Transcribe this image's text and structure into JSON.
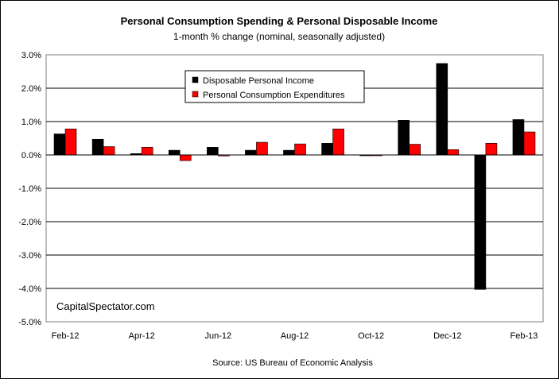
{
  "chart_data": {
    "type": "bar",
    "title": "Personal Consumption Spending & Personal Disposable Income",
    "subtitle": "1-month % change (nominal, seasonally adjusted)",
    "categories": [
      "Feb-12",
      "Mar-12",
      "Apr-12",
      "May-12",
      "Jun-12",
      "Jul-12",
      "Aug-12",
      "Sep-12",
      "Oct-12",
      "Nov-12",
      "Dec-12",
      "Jan-13",
      "Feb-13"
    ],
    "x_tick_labels": [
      "Feb-12",
      "",
      "Apr-12",
      "",
      "Jun-12",
      "",
      "Aug-12",
      "",
      "Oct-12",
      "",
      "Dec-12",
      "",
      "Feb-13"
    ],
    "series": [
      {
        "name": "Disposable Personal Income",
        "color": "#000000",
        "values": [
          0.63,
          0.47,
          0.04,
          0.14,
          0.23,
          0.14,
          0.14,
          0.35,
          -0.02,
          1.04,
          2.74,
          -4.03,
          1.06
        ]
      },
      {
        "name": "Personal Consumption Expenditures",
        "color": "#ff0000",
        "values": [
          0.78,
          0.25,
          0.23,
          -0.17,
          -0.03,
          0.38,
          0.33,
          0.78,
          0.0,
          0.32,
          0.16,
          0.35,
          0.69
        ]
      }
    ],
    "y_ticks": [
      3.0,
      2.0,
      1.0,
      0.0,
      -1.0,
      -2.0,
      -3.0,
      -4.0,
      -5.0
    ],
    "y_tick_labels": [
      "3.0%",
      "2.0%",
      "1.0%",
      "0.0%",
      "-1.0%",
      "-2.0%",
      "-3.0%",
      "-4.0%",
      "-5.0%"
    ],
    "ylim": [
      -5.0,
      3.0
    ],
    "xlabel": "",
    "ylabel": "",
    "grid": true,
    "legend_position": "top-center",
    "watermark": "CapitalSpectator.com",
    "source": "Source: US Bureau of Economic Analysis"
  }
}
